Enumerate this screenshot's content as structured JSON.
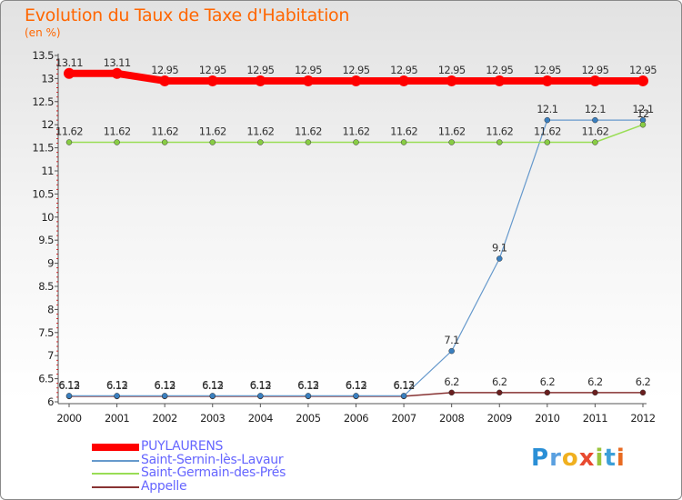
{
  "header": {
    "title": "Evolution du Taux de Taxe d'Habitation",
    "unit": "(en %)"
  },
  "brand": {
    "letters": [
      "P",
      "r",
      "o",
      "x",
      "i",
      "t",
      "i"
    ],
    "colors": [
      "#2a8fd6",
      "#5aa0e0",
      "#f0b020",
      "#e84a30",
      "#9ac43c",
      "#3c9fd8",
      "#e86a20"
    ]
  },
  "chart_data": {
    "type": "line",
    "x": [
      "2000",
      "2001",
      "2002",
      "2003",
      "2004",
      "2005",
      "2006",
      "2007",
      "2008",
      "2009",
      "2010",
      "2011",
      "2012"
    ],
    "ylim": [
      6,
      13.5
    ],
    "yticks": [
      "6",
      "6.5",
      "7",
      "7.5",
      "8",
      "8.5",
      "9",
      "9.5",
      "10",
      "10.5",
      "11",
      "11.5",
      "12",
      "12.5",
      "13",
      "13.5"
    ],
    "grid": false,
    "legend_position": "bottom-left",
    "series": [
      {
        "name": "PUYLAURENS",
        "color": "#ff0000",
        "values": [
          13.11,
          13.11,
          12.95,
          12.95,
          12.95,
          12.95,
          12.95,
          12.95,
          12.95,
          12.95,
          12.95,
          12.95,
          12.95
        ],
        "labels": [
          "13.11",
          "13.11",
          "12.95",
          "12.95",
          "12.95",
          "12.95",
          "12.95",
          "12.95",
          "12.95",
          "12.95",
          "12.95",
          "12.95",
          "12.95"
        ]
      },
      {
        "name": "Saint-Sernin-lès-Lavaur",
        "color": "#6699cc",
        "values": [
          6.13,
          6.13,
          6.13,
          6.13,
          6.13,
          6.13,
          6.13,
          6.13,
          7.1,
          9.1,
          12.1,
          12.1,
          12.1
        ],
        "labels": [
          "6.13",
          "6.13",
          "6.13",
          "6.13",
          "6.13",
          "6.13",
          "6.13",
          "6.13",
          "7.1",
          "9.1",
          "12.1",
          "12.1",
          "12.1"
        ]
      },
      {
        "name": "Saint-Germain-des-Prés",
        "color": "#99dd55",
        "values": [
          11.62,
          11.62,
          11.62,
          11.62,
          11.62,
          11.62,
          11.62,
          11.62,
          11.62,
          11.62,
          11.62,
          11.62,
          12
        ],
        "labels": [
          "11.62",
          "11.62",
          "11.62",
          "11.62",
          "11.62",
          "11.62",
          "11.62",
          "11.62",
          "11.62",
          "11.62",
          "11.62",
          "11.62",
          "12"
        ]
      },
      {
        "name": "Appelle",
        "color": "#883333",
        "values": [
          6.12,
          6.12,
          6.12,
          6.12,
          6.12,
          6.12,
          6.12,
          6.12,
          6.2,
          6.2,
          6.2,
          6.2,
          6.2
        ],
        "labels": [
          "6.12",
          "6.12",
          "6.12",
          "6.12",
          "6.12",
          "6.12",
          "6.12",
          "6.12",
          "6.2",
          "6.2",
          "6.2",
          "6.2",
          "6.2"
        ]
      }
    ]
  }
}
